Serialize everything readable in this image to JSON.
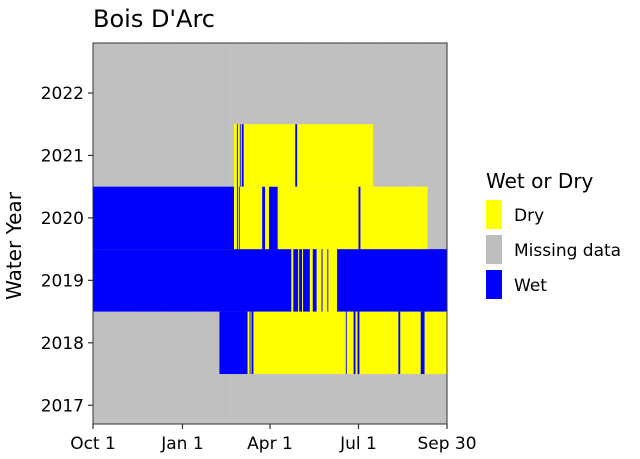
{
  "chart_data": {
    "type": "heatmap",
    "title": "Bois D'Arc",
    "xlabel": "",
    "ylabel": "Water Year",
    "x_ticks": [
      "Oct 1",
      "Jan 1",
      "Apr 1",
      "Jul 1",
      "Sep 30"
    ],
    "x_tick_days": [
      0,
      92,
      182,
      273,
      364
    ],
    "xlim_days": [
      0,
      364
    ],
    "y_ticks": [
      2017,
      2018,
      2019,
      2020,
      2021,
      2022
    ],
    "ylim": [
      2016.7,
      2022.8
    ],
    "grid": true,
    "legend": {
      "title": "Wet or Dry",
      "position": "right",
      "entries": [
        {
          "key": "dry",
          "label": "Dry",
          "color": "#ffff00"
        },
        {
          "key": "missing",
          "label": "Missing data",
          "color": "#bebebe"
        },
        {
          "key": "wet",
          "label": "Wet",
          "color": "#0000ff"
        }
      ]
    },
    "colors": {
      "dry": "#ffff00",
      "missing": "#bebebe",
      "wet": "#0000ff"
    },
    "years": [
      {
        "year": 2018,
        "segments": [
          [
            0,
            130,
            "missing"
          ],
          [
            130,
            159,
            "wet"
          ],
          [
            159,
            161,
            "yellow"
          ],
          [
            161,
            162,
            "wet"
          ],
          [
            162,
            163,
            "dry"
          ],
          [
            163,
            165,
            "wet"
          ],
          [
            165,
            260,
            "dry"
          ],
          [
            260,
            261,
            "wet"
          ],
          [
            261,
            268,
            "dry"
          ],
          [
            268,
            270,
            "wet"
          ],
          [
            270,
            272,
            "dry"
          ],
          [
            272,
            274,
            "wet"
          ],
          [
            274,
            314,
            "dry"
          ],
          [
            314,
            316,
            "wet"
          ],
          [
            316,
            337,
            "dry"
          ],
          [
            337,
            341,
            "wet"
          ],
          [
            341,
            364,
            "dry"
          ]
        ]
      },
      {
        "year": 2019,
        "segments": [
          [
            0,
            204,
            "wet"
          ],
          [
            204,
            206,
            "dry"
          ],
          [
            206,
            211,
            "wet"
          ],
          [
            211,
            212,
            "dry"
          ],
          [
            212,
            215,
            "wet"
          ],
          [
            215,
            216,
            "dry"
          ],
          [
            216,
            223,
            "wet"
          ],
          [
            223,
            226,
            "dry"
          ],
          [
            226,
            230,
            "wet"
          ],
          [
            230,
            235,
            "dry"
          ],
          [
            235,
            236,
            "wet"
          ],
          [
            236,
            241,
            "dry"
          ],
          [
            241,
            242,
            "wet"
          ],
          [
            242,
            251,
            "dry"
          ],
          [
            251,
            364,
            "wet"
          ]
        ]
      },
      {
        "year": 2020,
        "segments": [
          [
            0,
            145,
            "wet"
          ],
          [
            145,
            148,
            "dry"
          ],
          [
            148,
            149,
            "wet"
          ],
          [
            149,
            150,
            "dry"
          ],
          [
            150,
            151,
            "wet"
          ],
          [
            151,
            174,
            "dry"
          ],
          [
            174,
            177,
            "wet"
          ],
          [
            177,
            181,
            "dry"
          ],
          [
            181,
            190,
            "wet"
          ],
          [
            190,
            273,
            "dry"
          ],
          [
            273,
            275,
            "wet"
          ],
          [
            275,
            344,
            "dry"
          ],
          [
            344,
            364,
            "missing"
          ]
        ]
      },
      {
        "year": 2021,
        "segments": [
          [
            0,
            145,
            "missing"
          ],
          [
            145,
            148,
            "dry"
          ],
          [
            148,
            149,
            "wet"
          ],
          [
            149,
            151,
            "dry"
          ],
          [
            151,
            152,
            "wet"
          ],
          [
            152,
            153,
            "dry"
          ],
          [
            153,
            155,
            "wet"
          ],
          [
            155,
            208,
            "dry"
          ],
          [
            208,
            210,
            "wet"
          ],
          [
            210,
            288,
            "dry"
          ],
          [
            288,
            364,
            "missing"
          ]
        ]
      }
    ]
  }
}
